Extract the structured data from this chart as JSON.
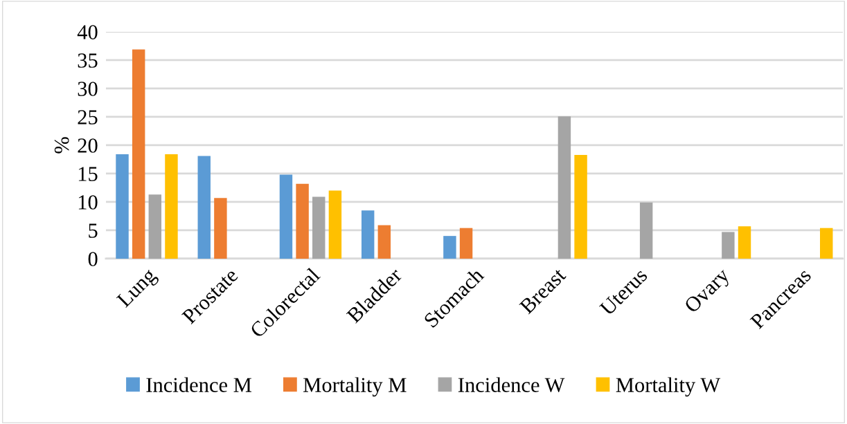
{
  "chart_data": {
    "type": "bar",
    "ylabel": "%",
    "categories": [
      "Lung",
      "Prostate",
      "Colorectal",
      "Bladder",
      "Stomach",
      "Breast",
      "Uterus",
      "Ovary",
      "Pancreas"
    ],
    "series": [
      {
        "name": "Incidence M",
        "color": "#5b9bd5",
        "values": [
          18.4,
          18.1,
          14.8,
          8.5,
          4.0,
          null,
          null,
          null,
          null
        ]
      },
      {
        "name": "Mortality M",
        "color": "#ed7d31",
        "values": [
          36.9,
          10.7,
          13.2,
          5.9,
          5.4,
          null,
          null,
          null,
          null
        ]
      },
      {
        "name": "Incidence W",
        "color": "#a5a5a5",
        "values": [
          11.3,
          null,
          10.9,
          null,
          null,
          25.1,
          9.9,
          4.7,
          null
        ]
      },
      {
        "name": "Mortality W",
        "color": "#ffc000",
        "values": [
          18.4,
          null,
          12.0,
          null,
          null,
          18.3,
          null,
          5.7,
          5.4
        ]
      }
    ],
    "ylim": [
      0,
      40
    ],
    "yticks": [
      0,
      5,
      10,
      15,
      20,
      25,
      30,
      35,
      40
    ],
    "grid": "y",
    "legend": "bottom"
  }
}
